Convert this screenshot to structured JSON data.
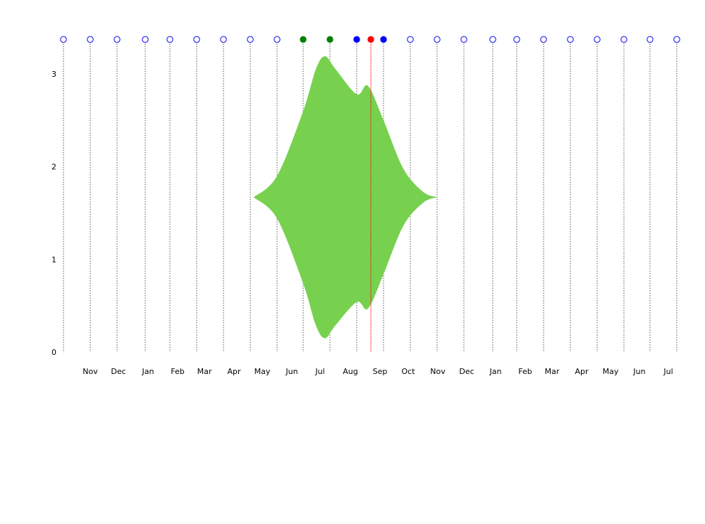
{
  "chart_data": {
    "type": "area",
    "title": "",
    "xlabel": "",
    "ylabel": "",
    "ylim": [
      0,
      3.35
    ],
    "y_ticks": [
      0,
      1,
      2,
      3
    ],
    "grid": "vertical dotted lines at each timeline point",
    "month_tick_labels": [
      "Nov",
      "Dec",
      "Jan",
      "Feb",
      "Mar",
      "Apr",
      "May",
      "Jun",
      "Jul",
      "Aug",
      "Sep",
      "Oct",
      "Nov",
      "Dec",
      "Jan",
      "Feb",
      "Mar",
      "Apr",
      "May",
      "Jun",
      "Jul"
    ],
    "timeline_markers": [
      {
        "style": "open",
        "color": "#0000ff"
      },
      {
        "style": "open",
        "color": "#0000ff"
      },
      {
        "style": "open",
        "color": "#0000ff"
      },
      {
        "style": "open",
        "color": "#0000ff"
      },
      {
        "style": "open",
        "color": "#0000ff"
      },
      {
        "style": "open",
        "color": "#0000ff"
      },
      {
        "style": "open",
        "color": "#0000ff"
      },
      {
        "style": "open",
        "color": "#0000ff"
      },
      {
        "style": "open",
        "color": "#0000ff"
      },
      {
        "style": "filled",
        "color": "#008000"
      },
      {
        "style": "filled",
        "color": "#008000"
      },
      {
        "style": "filled",
        "color": "#0000ff"
      },
      {
        "style": "filled",
        "color": "#0000ff"
      },
      {
        "style": "open",
        "color": "#0000ff"
      },
      {
        "style": "open",
        "color": "#0000ff"
      },
      {
        "style": "open",
        "color": "#0000ff"
      },
      {
        "style": "open",
        "color": "#0000ff"
      },
      {
        "style": "open",
        "color": "#0000ff"
      },
      {
        "style": "open",
        "color": "#0000ff"
      },
      {
        "style": "open",
        "color": "#0000ff"
      },
      {
        "style": "open",
        "color": "#0000ff"
      },
      {
        "style": "open",
        "color": "#0000ff"
      },
      {
        "style": "open",
        "color": "#0000ff"
      },
      {
        "style": "open",
        "color": "#0000ff"
      }
    ],
    "current_marker": {
      "color": "#ff0000"
    },
    "band": {
      "color": "#77d14f",
      "center": 1.67,
      "upper": [
        1.67,
        1.9,
        2.6,
        3.05,
        3.19,
        3.05,
        2.78,
        2.87,
        2.5,
        1.98,
        1.73,
        1.67
      ],
      "lower": [
        1.67,
        1.44,
        0.74,
        0.29,
        0.15,
        0.29,
        0.54,
        0.47,
        0.84,
        1.36,
        1.61,
        1.67
      ]
    }
  }
}
